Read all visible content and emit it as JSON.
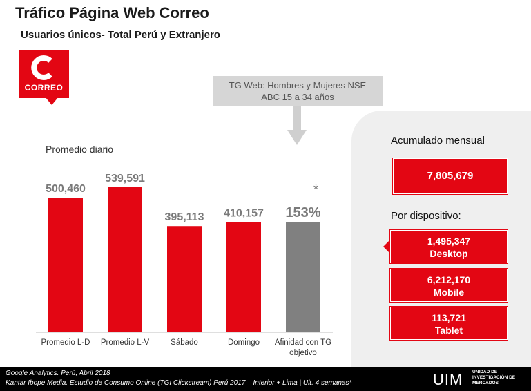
{
  "header": {
    "title": "Tráfico Página Web Correo",
    "subtitle": "Usuarios únicos- Total Perú y Extranjero"
  },
  "logo": {
    "word": "CORREO",
    "letter": "C"
  },
  "callout": {
    "line1": "TG Web: Hombres y Mujeres NSE",
    "line2": "ABC 15 a 34 años"
  },
  "colors": {
    "red": "#e30613",
    "gray": "#808080",
    "panel": "#efefef"
  },
  "chart_data": {
    "type": "bar",
    "title": "Promedio diario",
    "categories": [
      "Promedio L-D",
      "Promedio L-V",
      "Sábado",
      "Domingo",
      "Afinidad con TG objetivo"
    ],
    "values": [
      500460,
      539591,
      395113,
      410157,
      153
    ],
    "value_labels": [
      "500,460",
      "539,591",
      "395,113",
      "410,157",
      "153%"
    ],
    "bar_colors": [
      "#e30613",
      "#e30613",
      "#e30613",
      "#e30613",
      "#808080"
    ],
    "annotation": "*",
    "xlabel": "",
    "ylabel": "",
    "grid": false
  },
  "panel": {
    "total_label": "Acumulado mensual",
    "total_value": "7,805,679",
    "device_label": "Por dispositivo:",
    "devices": [
      {
        "value": "1,495,347",
        "name": "Desktop"
      },
      {
        "value": "6,212,170",
        "name": "Mobile"
      },
      {
        "value": "113,721",
        "name": "Tablet"
      }
    ]
  },
  "footer": {
    "source1": "Google Analytics. Perú,  Abril 2018",
    "source2": "Kantar Ibope Media. Estudio de Consumo Online (TGI Clickstream) Perú 2017 – Interior + Lima | Ult. 4 semanas*",
    "brand": "UIM",
    "brand_sub": "UNIDAD DE INVESTIGACIÓN DE MERCADOS"
  }
}
